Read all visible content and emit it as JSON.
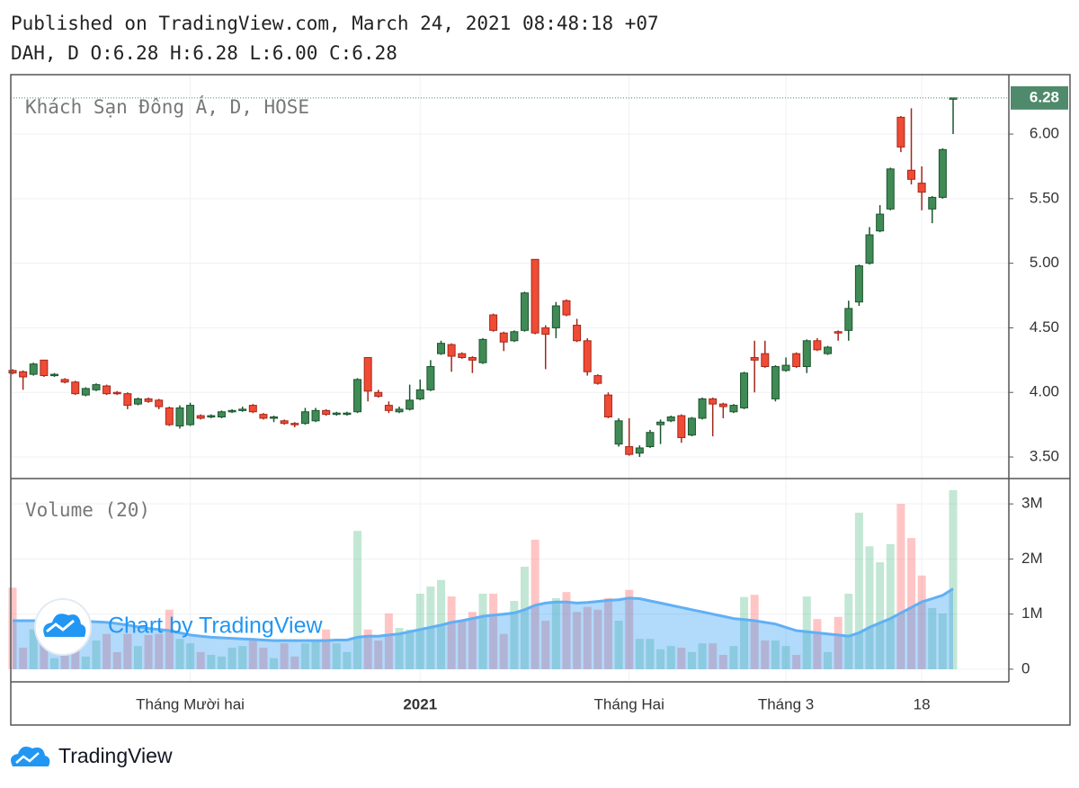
{
  "published": "Published on TradingView.com, March 24, 2021 08:48:18 +07",
  "ohlc_header": "DAH, D O:6.28 H:6.28 L:6.00 C:6.28",
  "watermark": "Chart by TradingView",
  "footer": "TradingView",
  "chart_data": {
    "type": "candlestick",
    "title": "Khách Sạn Đông Á, D, HOSE",
    "categories": [
      null,
      null,
      null,
      null,
      null,
      null,
      null,
      null,
      null,
      null,
      null,
      null,
      null,
      null,
      null,
      null,
      null,
      "Tháng Mười hai",
      null,
      null,
      null,
      null,
      null,
      null,
      null,
      null,
      null,
      null,
      null,
      null,
      null,
      null,
      null,
      null,
      null,
      null,
      null,
      null,
      null,
      "2021",
      null,
      null,
      null,
      null,
      null,
      null,
      null,
      null,
      null,
      null,
      null,
      null,
      null,
      null,
      null,
      null,
      null,
      null,
      null,
      "Tháng Hai",
      null,
      null,
      null,
      null,
      null,
      null,
      null,
      null,
      null,
      null,
      null,
      null,
      null,
      null,
      "Tháng 3",
      null,
      null,
      null,
      null,
      null,
      null,
      null,
      null,
      null,
      null,
      null,
      null,
      "18",
      null,
      null,
      null
    ],
    "open": [
      4.17,
      4.16,
      4.14,
      4.25,
      4.13,
      4.1,
      4.08,
      3.98,
      4.02,
      4.05,
      4.0,
      3.99,
      3.91,
      3.95,
      3.94,
      3.88,
      3.74,
      3.75,
      3.82,
      3.81,
      3.81,
      3.85,
      3.86,
      3.9,
      3.83,
      3.8,
      3.78,
      3.76,
      3.76,
      3.78,
      3.86,
      3.84,
      3.83,
      3.85,
      4.27,
      4.0,
      3.9,
      3.85,
      3.87,
      3.95,
      4.02,
      4.3,
      4.37,
      4.3,
      4.27,
      4.23,
      4.6,
      4.46,
      4.4,
      4.48,
      5.03,
      4.5,
      4.5,
      4.71,
      4.52,
      4.4,
      4.13,
      3.98,
      3.6,
      3.58,
      3.53,
      3.58,
      3.75,
      3.78,
      3.82,
      3.67,
      3.8,
      3.95,
      3.91,
      3.85,
      3.88,
      4.27,
      4.3,
      3.95,
      4.17,
      4.3,
      4.2,
      4.4,
      4.3,
      4.47,
      4.48,
      4.7,
      5.0,
      5.25,
      5.42,
      6.13,
      5.72,
      5.62,
      5.42,
      5.51,
      6.28
    ],
    "high": [
      4.18,
      4.17,
      4.23,
      4.25,
      4.15,
      4.11,
      4.09,
      4.04,
      4.07,
      4.06,
      4.01,
      4.0,
      3.96,
      3.96,
      3.95,
      3.89,
      3.9,
      3.92,
      3.83,
      3.83,
      3.86,
      3.87,
      3.89,
      3.91,
      3.84,
      3.82,
      3.79,
      3.77,
      3.88,
      3.88,
      3.87,
      3.85,
      3.85,
      4.11,
      4.27,
      4.02,
      3.93,
      3.89,
      4.06,
      4.1,
      4.25,
      4.4,
      4.38,
      4.31,
      4.28,
      4.42,
      4.61,
      4.47,
      4.48,
      4.78,
      5.03,
      4.52,
      4.7,
      4.72,
      4.57,
      4.42,
      4.14,
      4.0,
      3.8,
      3.8,
      3.59,
      3.71,
      3.79,
      3.82,
      3.83,
      3.81,
      3.96,
      3.96,
      3.92,
      3.91,
      4.16,
      4.4,
      4.4,
      4.21,
      4.27,
      4.31,
      4.41,
      4.42,
      4.36,
      4.48,
      4.71,
      4.99,
      5.28,
      5.45,
      5.74,
      6.14,
      6.2,
      5.75,
      5.52,
      5.89,
      6.28
    ],
    "low": [
      4.14,
      4.02,
      4.13,
      4.12,
      4.12,
      4.07,
      3.98,
      3.97,
      4.01,
      3.98,
      3.98,
      3.87,
      3.9,
      3.92,
      3.87,
      3.74,
      3.72,
      3.74,
      3.79,
      3.8,
      3.8,
      3.84,
      3.85,
      3.84,
      3.79,
      3.77,
      3.75,
      3.73,
      3.75,
      3.77,
      3.82,
      3.82,
      3.82,
      3.84,
      3.93,
      3.96,
      3.84,
      3.84,
      3.86,
      3.94,
      4.01,
      4.29,
      4.16,
      4.26,
      4.15,
      4.22,
      4.47,
      4.32,
      4.39,
      4.47,
      4.45,
      4.18,
      4.42,
      4.59,
      4.39,
      4.13,
      4.06,
      3.8,
      3.58,
      3.51,
      3.5,
      3.57,
      3.6,
      3.77,
      3.61,
      3.66,
      3.79,
      3.66,
      3.8,
      3.84,
      3.87,
      4.0,
      4.19,
      3.93,
      4.16,
      4.19,
      4.15,
      4.32,
      4.29,
      4.4,
      4.4,
      4.67,
      4.99,
      5.24,
      5.41,
      5.86,
      5.61,
      5.41,
      5.31,
      5.5,
      6.0
    ],
    "close": [
      4.15,
      4.12,
      4.22,
      4.13,
      4.14,
      4.08,
      3.99,
      4.03,
      4.06,
      3.99,
      3.99,
      3.9,
      3.95,
      3.93,
      3.89,
      3.75,
      3.88,
      3.9,
      3.8,
      3.82,
      3.85,
      3.86,
      3.87,
      3.85,
      3.8,
      3.81,
      3.76,
      3.75,
      3.85,
      3.86,
      3.83,
      3.84,
      3.84,
      4.1,
      4.01,
      3.97,
      3.86,
      3.87,
      3.94,
      4.02,
      4.2,
      4.38,
      4.28,
      4.27,
      4.25,
      4.41,
      4.48,
      4.39,
      4.47,
      4.77,
      4.46,
      4.45,
      4.67,
      4.6,
      4.4,
      4.16,
      4.07,
      3.81,
      3.78,
      3.52,
      3.57,
      3.69,
      3.77,
      3.81,
      3.65,
      3.8,
      3.95,
      3.91,
      3.89,
      3.9,
      4.15,
      4.25,
      4.2,
      4.2,
      4.21,
      4.2,
      4.4,
      4.33,
      4.35,
      4.46,
      4.65,
      4.98,
      5.22,
      5.38,
      5.73,
      5.9,
      5.65,
      5.55,
      5.51,
      5.88,
      6.28
    ],
    "up_color": "#3f8a55",
    "down_color": "#f04b35",
    "ylim": [
      3.333,
      6.46
    ],
    "yticks": [
      {
        "value": 3.5,
        "label": "3.50"
      },
      {
        "value": 4,
        "label": "4.00"
      },
      {
        "value": 4.5,
        "label": "4.50"
      },
      {
        "value": 5,
        "label": "5.00"
      },
      {
        "value": 5.5,
        "label": "5.50"
      },
      {
        "value": 6,
        "label": "6.00"
      }
    ],
    "grid": true,
    "volume_title": "Volume (20)",
    "volume": [
      1.48,
      0.39,
      0.72,
      0.59,
      0.2,
      0.31,
      0.39,
      0.23,
      0.52,
      0.64,
      0.31,
      0.64,
      0.42,
      0.62,
      0.64,
      1.08,
      0.55,
      0.47,
      0.31,
      0.26,
      0.23,
      0.39,
      0.42,
      0.52,
      0.39,
      0.2,
      0.47,
      0.23,
      0.47,
      0.52,
      0.72,
      0.47,
      0.31,
      2.51,
      0.72,
      0.52,
      1.01,
      0.75,
      0.72,
      1.37,
      1.5,
      1.62,
      1.32,
      0.88,
      1.04,
      1.37,
      1.37,
      0.64,
      1.24,
      1.86,
      2.35,
      0.88,
      1.29,
      1.4,
      1.04,
      1.13,
      1.08,
      1.29,
      0.88,
      1.44,
      0.55,
      0.55,
      0.36,
      0.42,
      0.39,
      0.31,
      0.47,
      0.47,
      0.26,
      0.42,
      1.31,
      1.35,
      0.52,
      0.52,
      0.42,
      0.26,
      1.32,
      0.91,
      0.31,
      0.95,
      1.37,
      2.84,
      2.23,
      1.94,
      2.27,
      3.0,
      2.38,
      1.7,
      1.11,
      1.01,
      3.25
    ],
    "volume_ma": [
      0.88,
      0.88,
      0.88,
      0.89,
      0.89,
      0.89,
      0.88,
      0.87,
      0.86,
      0.85,
      0.83,
      0.8,
      0.77,
      0.74,
      0.72,
      0.7,
      0.66,
      0.62,
      0.6,
      0.58,
      0.57,
      0.56,
      0.55,
      0.54,
      0.53,
      0.52,
      0.52,
      0.52,
      0.52,
      0.52,
      0.52,
      0.53,
      0.53,
      0.58,
      0.6,
      0.6,
      0.62,
      0.64,
      0.68,
      0.72,
      0.76,
      0.8,
      0.85,
      0.88,
      0.92,
      0.96,
      0.98,
      1.0,
      1.02,
      1.08,
      1.16,
      1.2,
      1.22,
      1.22,
      1.2,
      1.21,
      1.23,
      1.25,
      1.26,
      1.29,
      1.28,
      1.24,
      1.2,
      1.16,
      1.12,
      1.08,
      1.04,
      1.0,
      0.96,
      0.92,
      0.9,
      0.88,
      0.85,
      0.82,
      0.76,
      0.7,
      0.68,
      0.66,
      0.64,
      0.62,
      0.6,
      0.66,
      0.76,
      0.84,
      0.92,
      1.02,
      1.12,
      1.22,
      1.28,
      1.34,
      1.46
    ],
    "y2lim": [
      -0.23,
      3.46
    ],
    "y2ticks": [
      0,
      {
        "value": 1,
        "label": "1M"
      },
      {
        "value": 2,
        "label": "2M"
      },
      {
        "value": 3,
        "label": "3M"
      }
    ]
  }
}
